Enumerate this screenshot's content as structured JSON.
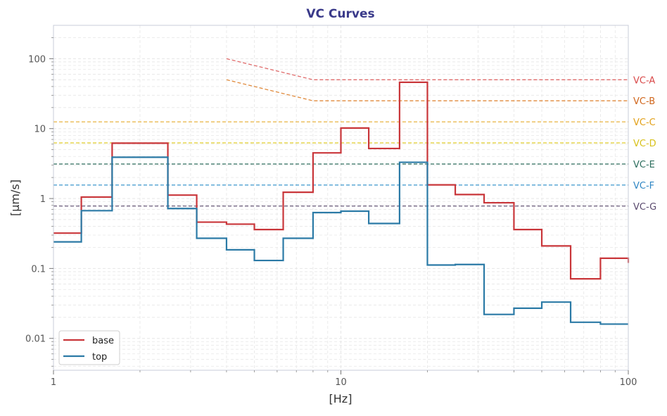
{
  "chart_data": {
    "type": "line",
    "title": "VC Curves",
    "xlabel": "[Hz]",
    "ylabel": "[µm/s]",
    "xscale": "log",
    "yscale": "log",
    "xlim": [
      1,
      100
    ],
    "ylim": [
      0.0035,
      300
    ],
    "grid": true,
    "legend_position": "lower-left",
    "x_ticks": [
      {
        "value": 1,
        "label": "1"
      },
      {
        "value": 10,
        "label": "10"
      },
      {
        "value": 100,
        "label": "100"
      }
    ],
    "y_ticks": [
      {
        "value": 0.01,
        "label": "0.01"
      },
      {
        "value": 0.1,
        "label": "0.1"
      },
      {
        "value": 1,
        "label": "1"
      },
      {
        "value": 10,
        "label": "10"
      },
      {
        "value": 100,
        "label": "100"
      }
    ],
    "series": [
      {
        "name": "base",
        "color": "#c9363a",
        "step_edges": [
          1,
          1.25,
          1.6,
          2.5,
          3.15,
          4,
          5,
          6.3,
          8,
          10,
          12.5,
          16,
          20,
          25,
          31.5,
          40,
          50,
          63,
          80,
          100
        ],
        "values": [
          0.32,
          1.05,
          6.2,
          1.12,
          0.46,
          0.43,
          0.36,
          1.23,
          4.5,
          10.2,
          5.2,
          46.0,
          1.57,
          1.14,
          0.87,
          0.36,
          0.21,
          0.071,
          0.14,
          0.12
        ]
      },
      {
        "name": "top",
        "color": "#2b7aa6",
        "step_edges": [
          1,
          1.25,
          1.6,
          2.5,
          3.15,
          4,
          5,
          6.3,
          8,
          10,
          12.5,
          16,
          20,
          25,
          31.5,
          40,
          50,
          63,
          80,
          100
        ],
        "values": [
          0.24,
          0.67,
          3.9,
          0.72,
          0.27,
          0.185,
          0.13,
          0.27,
          0.63,
          0.66,
          0.44,
          3.3,
          0.112,
          0.114,
          0.022,
          0.027,
          0.033,
          0.017,
          0.016,
          0.016
        ]
      }
    ],
    "reference_curves": [
      {
        "label": "VC-A",
        "color": "#e06b6b",
        "points": [
          [
            4,
            100
          ],
          [
            8,
            50
          ],
          [
            100,
            50
          ]
        ]
      },
      {
        "label": "VC-B",
        "color": "#e08a3c",
        "points": [
          [
            4,
            50
          ],
          [
            8,
            25
          ],
          [
            100,
            25
          ]
        ]
      },
      {
        "label": "VC-C",
        "color": "#e8b341",
        "points": [
          [
            1,
            12.5
          ],
          [
            100,
            12.5
          ]
        ]
      },
      {
        "label": "VC-D",
        "color": "#e1cd2a",
        "points": [
          [
            1,
            6.25
          ],
          [
            100,
            6.25
          ]
        ]
      },
      {
        "label": "VC-E",
        "color": "#2d6e5e",
        "points": [
          [
            1,
            3.12
          ],
          [
            100,
            3.12
          ]
        ]
      },
      {
        "label": "VC-F",
        "color": "#3b95cc",
        "points": [
          [
            1,
            1.56
          ],
          [
            100,
            1.56
          ]
        ]
      },
      {
        "label": "VC-G",
        "color": "#6a5b7b",
        "points": [
          [
            1,
            0.78
          ],
          [
            100,
            0.78
          ]
        ]
      }
    ],
    "ref_label_colors": {
      "VC-A": "#d94a4a",
      "VC-B": "#d0661c",
      "VC-C": "#e2a018",
      "VC-D": "#d8c11a",
      "VC-E": "#2d6e5e",
      "VC-F": "#2f86c4",
      "VC-G": "#5a4a6e"
    },
    "colors": {
      "title": "#3a3a8a",
      "axis_text": "#555555",
      "frame": "#c8ccd8",
      "grid": "#e6e6e6"
    }
  }
}
